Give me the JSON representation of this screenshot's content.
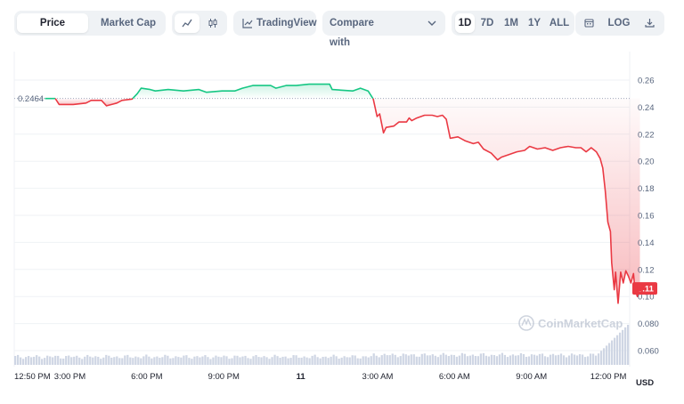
{
  "toolbar": {
    "tabs": [
      {
        "label": "Price",
        "active": true
      },
      {
        "label": "Market Cap",
        "active": false
      }
    ],
    "chart_type_icons": [
      "line-chart-icon",
      "candlestick-icon"
    ],
    "tradingview_label": "TradingView",
    "compare_label": "Compare with",
    "ranges": [
      {
        "label": "1D",
        "active": true
      },
      {
        "label": "7D",
        "active": false
      },
      {
        "label": "1M",
        "active": false
      },
      {
        "label": "1Y",
        "active": false
      },
      {
        "label": "ALL",
        "active": false
      }
    ],
    "calendar_icon": "calendar-icon",
    "log_label": "LOG",
    "download_icon": "download-icon"
  },
  "watermark": "CoinMarketCap",
  "chart_data": {
    "type": "line",
    "currency": "USD",
    "open_price": 0.2464,
    "open_price_label": "0.2464",
    "last_price_label": "0.11",
    "last_price": 0.106,
    "colors": {
      "up": "#16c784",
      "down": "#ea3943",
      "volume": "#cfd6e4",
      "grid": "#eff2f5",
      "baseline": "#a1a7bb"
    },
    "ylim": [
      0.05,
      0.27
    ],
    "yticks": [
      0.26,
      0.24,
      0.22,
      0.2,
      0.18,
      0.16,
      0.14,
      0.12,
      0.1,
      0.08,
      0.06
    ],
    "ytick_labels": [
      "0.26",
      "0.24",
      "0.22",
      "0.20",
      "0.18",
      "0.16",
      "0.14",
      "0.12",
      "0.10",
      "0.080",
      "0.060"
    ],
    "xlim": [
      0,
      24
    ],
    "xticks": [
      {
        "x": 0.0,
        "label": "12:50 PM"
      },
      {
        "x": 2.17,
        "label": "3:00 PM"
      },
      {
        "x": 5.17,
        "label": "6:00 PM"
      },
      {
        "x": 8.17,
        "label": "9:00 PM"
      },
      {
        "x": 11.17,
        "label": "11"
      },
      {
        "x": 14.17,
        "label": "3:00 AM"
      },
      {
        "x": 17.17,
        "label": "6:00 AM"
      },
      {
        "x": 20.17,
        "label": "9:00 AM"
      },
      {
        "x": 23.17,
        "label": "12:00 PM"
      }
    ],
    "series": [
      {
        "points": [
          [
            1.2,
            0.2464
          ],
          [
            1.6,
            0.2464
          ],
          [
            1.75,
            0.242
          ],
          [
            2.3,
            0.242
          ],
          [
            2.8,
            0.243
          ],
          [
            3.0,
            0.245
          ],
          [
            3.4,
            0.245
          ],
          [
            3.6,
            0.241
          ],
          [
            4.0,
            0.243
          ],
          [
            4.2,
            0.245
          ],
          [
            4.6,
            0.246
          ],
          [
            4.8,
            0.25
          ],
          [
            4.95,
            0.254
          ],
          [
            5.3,
            0.253
          ],
          [
            5.5,
            0.252
          ],
          [
            6.0,
            0.253
          ],
          [
            6.6,
            0.252
          ],
          [
            7.2,
            0.253
          ],
          [
            7.5,
            0.251
          ],
          [
            8.1,
            0.252
          ],
          [
            8.6,
            0.252
          ],
          [
            8.9,
            0.254
          ],
          [
            9.3,
            0.256
          ],
          [
            10.0,
            0.256
          ],
          [
            10.2,
            0.254
          ],
          [
            10.6,
            0.256
          ],
          [
            11.0,
            0.256
          ],
          [
            11.5,
            0.257
          ],
          [
            12.0,
            0.257
          ],
          [
            12.3,
            0.257
          ],
          [
            12.4,
            0.253
          ],
          [
            13.2,
            0.252
          ],
          [
            13.5,
            0.254
          ],
          [
            13.8,
            0.252
          ],
          [
            14.0,
            0.246
          ],
          [
            14.15,
            0.233
          ],
          [
            14.25,
            0.235
          ],
          [
            14.4,
            0.221
          ],
          [
            14.5,
            0.225
          ],
          [
            14.8,
            0.226
          ],
          [
            15.0,
            0.229
          ],
          [
            15.3,
            0.229
          ],
          [
            15.4,
            0.232
          ],
          [
            15.5,
            0.23
          ],
          [
            15.7,
            0.232
          ],
          [
            16.0,
            0.234
          ],
          [
            16.3,
            0.234
          ],
          [
            16.5,
            0.233
          ],
          [
            16.7,
            0.234
          ],
          [
            16.85,
            0.231
          ],
          [
            17.0,
            0.217
          ],
          [
            17.3,
            0.218
          ],
          [
            17.6,
            0.215
          ],
          [
            17.9,
            0.213
          ],
          [
            18.1,
            0.214
          ],
          [
            18.3,
            0.209
          ],
          [
            18.6,
            0.206
          ],
          [
            18.85,
            0.201
          ],
          [
            19.0,
            0.203
          ],
          [
            19.3,
            0.205
          ],
          [
            19.6,
            0.207
          ],
          [
            19.9,
            0.208
          ],
          [
            20.1,
            0.211
          ],
          [
            20.4,
            0.209
          ],
          [
            20.7,
            0.21
          ],
          [
            21.0,
            0.208
          ],
          [
            21.3,
            0.21
          ],
          [
            21.6,
            0.211
          ],
          [
            21.9,
            0.21
          ],
          [
            22.1,
            0.21
          ],
          [
            22.3,
            0.207
          ],
          [
            22.5,
            0.21
          ],
          [
            22.7,
            0.207
          ],
          [
            22.85,
            0.202
          ],
          [
            22.95,
            0.195
          ],
          [
            23.05,
            0.178
          ],
          [
            23.15,
            0.155
          ],
          [
            23.25,
            0.148
          ],
          [
            23.3,
            0.125
          ],
          [
            23.4,
            0.105
          ],
          [
            23.45,
            0.118
          ],
          [
            23.55,
            0.095
          ],
          [
            23.65,
            0.118
          ],
          [
            23.75,
            0.11
          ],
          [
            23.85,
            0.119
          ],
          [
            23.95,
            0.115
          ],
          [
            24.05,
            0.11
          ],
          [
            24.15,
            0.117
          ],
          [
            24.2,
            0.106
          ],
          [
            24.3,
            0.1
          ],
          [
            24.4,
            0.106
          ]
        ]
      }
    ],
    "volume": {
      "note_values": "relative height 0-1 per bucket",
      "baseline_level": 0.18,
      "spike_start_x": 22.7,
      "spike_peak": 0.93
    }
  }
}
